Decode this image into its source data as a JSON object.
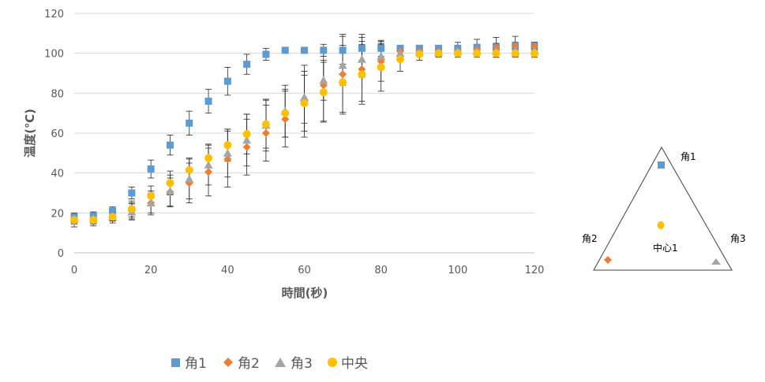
{
  "chart_data": {
    "type": "scatter",
    "xlabel": "時間(秒)",
    "ylabel": "温度(℃)",
    "xlim": [
      0,
      120
    ],
    "ylim": [
      0,
      120
    ],
    "x_ticks": [
      0,
      20,
      40,
      60,
      80,
      100,
      120
    ],
    "y_ticks": [
      0,
      20,
      40,
      60,
      80,
      100,
      120
    ],
    "grid": "horizontal",
    "legend_position": "bottom",
    "x": [
      0,
      5,
      10,
      15,
      20,
      25,
      30,
      35,
      40,
      45,
      50,
      55,
      60,
      65,
      70,
      75,
      80,
      85,
      90,
      95,
      100,
      105,
      110,
      115,
      120
    ],
    "series": [
      {
        "name": "角1",
        "marker": "square",
        "color": "#5B9BD5",
        "values": [
          18,
          18.5,
          21,
          30,
          42,
          54,
          65,
          76,
          86,
          94.5,
          99.5,
          101.5,
          101.5,
          101.5,
          101.5,
          102.5,
          102.5,
          102.5,
          102.5,
          102.5,
          102.5,
          103,
          103,
          103.5,
          103.5
        ],
        "errors": [
          2,
          2,
          2,
          3,
          4.5,
          5,
          6,
          6,
          7,
          5,
          3,
          1.5,
          1.5,
          3,
          7,
          7,
          4,
          1.5,
          1,
          1,
          3,
          4,
          5,
          5,
          2
        ]
      },
      {
        "name": "角2",
        "marker": "diamond",
        "color": "#ED7D31",
        "values": [
          16,
          16.5,
          18,
          21,
          25,
          30.5,
          35,
          40.5,
          47,
          53,
          60,
          67,
          76,
          84,
          89.5,
          92,
          96,
          101,
          101,
          101,
          101,
          102,
          103,
          103.5,
          103.5
        ],
        "errors": [
          3,
          3,
          3,
          4,
          5,
          7,
          10,
          12,
          14,
          14,
          14,
          14,
          18,
          18,
          20,
          16,
          10,
          3,
          2,
          2,
          2,
          2,
          2,
          2,
          2
        ]
      },
      {
        "name": "角3",
        "marker": "triangle",
        "color": "#A5A5A5",
        "values": [
          17,
          17,
          18,
          20.5,
          25,
          31,
          37,
          44,
          50,
          56.5,
          64,
          71,
          78,
          86.5,
          94,
          97,
          98.5,
          100,
          100.5,
          100.5,
          101,
          101,
          101,
          101,
          101
        ],
        "errors": [
          2,
          2,
          2,
          4,
          6,
          8,
          10,
          10,
          12,
          13,
          13,
          13,
          13,
          10,
          10,
          9,
          6,
          3,
          2,
          2,
          2,
          2,
          2,
          2,
          2
        ]
      },
      {
        "name": "中央",
        "marker": "circle",
        "color": "#FFC000",
        "values": [
          16.5,
          16.5,
          18,
          22,
          28.5,
          35,
          41.5,
          47.5,
          54,
          59.5,
          64.5,
          70,
          75,
          80.5,
          85.5,
          89.5,
          93,
          97,
          99.5,
          100,
          100,
          100,
          100,
          100,
          100
        ],
        "errors": [
          2,
          2,
          2,
          4,
          5,
          6,
          6,
          7,
          8,
          10,
          12,
          12,
          14,
          15,
          15,
          15,
          12,
          6,
          3,
          2,
          2,
          2,
          2,
          2,
          2
        ]
      }
    ]
  },
  "diagram": {
    "labels": {
      "top": "角1",
      "left": "角2",
      "right": "角3",
      "center": "中心1"
    },
    "colors": {
      "top": "#5B9BD5",
      "left": "#ED7D31",
      "right": "#A5A5A5",
      "center": "#FFC000"
    }
  }
}
